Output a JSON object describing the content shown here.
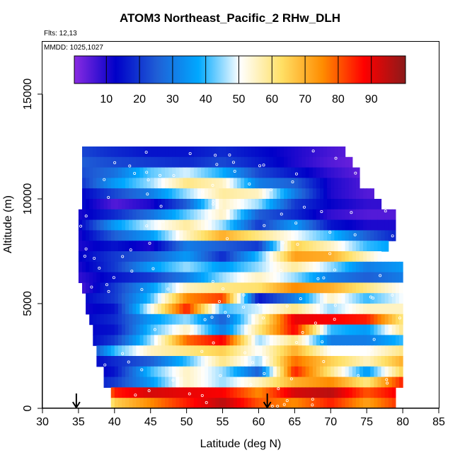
{
  "chart_data": {
    "type": "heatmap",
    "title": "ATOM3 Northeast_Pacific_2 RHw_DLH",
    "flights_label": "Flts: 12,13",
    "date_label": "MMDD: 1025,1027",
    "xlabel": "Latitude (deg N)",
    "ylabel": "Altitude (m)",
    "xlim": [
      30,
      85
    ],
    "ylim": [
      0,
      17500
    ],
    "xticks": [
      30,
      35,
      40,
      45,
      50,
      55,
      60,
      65,
      70,
      75,
      80,
      85
    ],
    "yticks": [
      0,
      5000,
      10000,
      15000
    ],
    "colorbar": {
      "range": [
        0,
        100
      ],
      "ticks": [
        10,
        20,
        30,
        40,
        50,
        60,
        70,
        80,
        90
      ],
      "colors": [
        "#8a2be2",
        "#0000c8",
        "#1f5fd6",
        "#00a8ff",
        "#ffffff",
        "#ffe066",
        "#ff8c00",
        "#ff0000",
        "#8b1a1a"
      ]
    },
    "arrows_at_latitude": [
      34.7,
      61.2
    ],
    "altitude_bins_m": [
      12250,
      11750,
      11250,
      10750,
      10250,
      9750,
      9250,
      8750,
      8250,
      7750,
      7250,
      6750,
      6250,
      5750,
      5250,
      4750,
      4250,
      3750,
      3250,
      2750,
      2250,
      1750,
      1250,
      750,
      250
    ],
    "row_lat_extent": [
      [
        35.5,
        72
      ],
      [
        35.5,
        73
      ],
      [
        35.5,
        74
      ],
      [
        35.5,
        74
      ],
      [
        35.5,
        76
      ],
      [
        35.5,
        77
      ],
      [
        35,
        79
      ],
      [
        35,
        79
      ],
      [
        35,
        79
      ],
      [
        35,
        78
      ],
      [
        35,
        77
      ],
      [
        35,
        80
      ],
      [
        35,
        80
      ],
      [
        35.5,
        80
      ],
      [
        36,
        80
      ],
      [
        36,
        80
      ],
      [
        36.5,
        80
      ],
      [
        37,
        80
      ],
      [
        37,
        80
      ],
      [
        37.5,
        80
      ],
      [
        37.5,
        80
      ],
      [
        38.5,
        80
      ],
      [
        38.5,
        80
      ],
      [
        39.5,
        79
      ],
      [
        39.5,
        79
      ]
    ],
    "row_anchor_lats": [
      35,
      40,
      45,
      50,
      55,
      60,
      65,
      70,
      75,
      80
    ],
    "rhw_rows_percent": [
      [
        22,
        18,
        15,
        15,
        18,
        14,
        10,
        6,
        3,
        2
      ],
      [
        25,
        22,
        20,
        18,
        22,
        16,
        10,
        5,
        2,
        2
      ],
      [
        22,
        28,
        42,
        48,
        38,
        22,
        15,
        8,
        3,
        2
      ],
      [
        18,
        35,
        45,
        60,
        55,
        30,
        25,
        10,
        5,
        3
      ],
      [
        12,
        22,
        30,
        45,
        58,
        55,
        30,
        10,
        5,
        5
      ],
      [
        15,
        5,
        10,
        25,
        55,
        45,
        20,
        12,
        8,
        8
      ],
      [
        10,
        18,
        28,
        42,
        55,
        25,
        18,
        8,
        5,
        5
      ],
      [
        12,
        35,
        48,
        58,
        45,
        20,
        35,
        15,
        10,
        10
      ],
      [
        10,
        25,
        35,
        55,
        70,
        60,
        50,
        40,
        25,
        15
      ],
      [
        10,
        15,
        10,
        30,
        25,
        20,
        65,
        55,
        40,
        35
      ],
      [
        12,
        20,
        25,
        35,
        18,
        40,
        72,
        70,
        55,
        40
      ],
      [
        10,
        20,
        35,
        45,
        35,
        45,
        58,
        45,
        30,
        35
      ],
      [
        8,
        15,
        20,
        30,
        45,
        55,
        45,
        30,
        25,
        30
      ],
      [
        5,
        20,
        35,
        55,
        60,
        62,
        75,
        70,
        60,
        50
      ],
      [
        12,
        20,
        40,
        75,
        82,
        15,
        30,
        55,
        40,
        50
      ],
      [
        10,
        15,
        50,
        85,
        40,
        48,
        60,
        45,
        55,
        55
      ],
      [
        12,
        18,
        35,
        45,
        25,
        55,
        90,
        88,
        85,
        60
      ],
      [
        12,
        15,
        40,
        55,
        30,
        60,
        88,
        40,
        35,
        60
      ],
      [
        10,
        20,
        45,
        78,
        88,
        45,
        60,
        30,
        30,
        40
      ],
      [
        10,
        40,
        55,
        60,
        65,
        50,
        70,
        50,
        50,
        60
      ],
      [
        10,
        18,
        25,
        40,
        60,
        45,
        78,
        65,
        55,
        70
      ],
      [
        8,
        15,
        40,
        55,
        45,
        25,
        85,
        60,
        35,
        65
      ],
      [
        12,
        20,
        35,
        55,
        45,
        55,
        70,
        75,
        60,
        85
      ],
      [
        15,
        85,
        92,
        90,
        88,
        75,
        92,
        95,
        80,
        90
      ],
      [
        15,
        65,
        75,
        85,
        95,
        80,
        75,
        85,
        72,
        85
      ]
    ]
  }
}
